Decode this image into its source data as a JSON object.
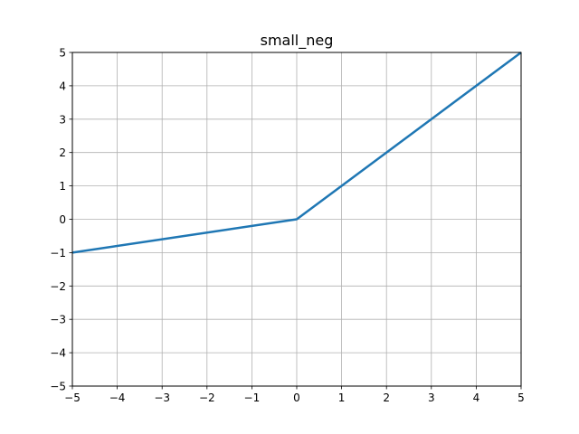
{
  "chart_data": {
    "type": "line",
    "title": "small_neg",
    "xlabel": "",
    "ylabel": "",
    "xlim": [
      -5,
      5
    ],
    "ylim": [
      -5,
      5
    ],
    "xticks": [
      -5,
      -4,
      -3,
      -2,
      -1,
      0,
      1,
      2,
      3,
      4,
      5
    ],
    "yticks": [
      -5,
      -4,
      -3,
      -2,
      -1,
      0,
      1,
      2,
      3,
      4,
      5
    ],
    "grid": true,
    "series": [
      {
        "x": [
          -5,
          0,
          5
        ],
        "y": [
          -1,
          0,
          5
        ],
        "color": "#1f77b4"
      }
    ]
  }
}
